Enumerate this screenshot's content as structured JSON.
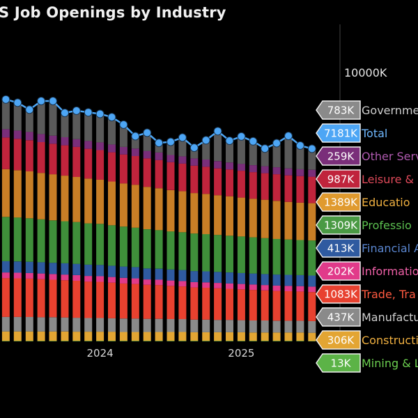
{
  "title": "S Job Openings by Industry",
  "chart_data": {
    "type": "bar",
    "stacked": true,
    "x_ticks": [
      {
        "label": "2024",
        "index": 8
      },
      {
        "label": "2025",
        "index": 20
      }
    ],
    "y_tick_label": "10000K",
    "ymax": 10000,
    "grid": false,
    "n_bars": 27,
    "total_series": {
      "name": "Total",
      "color": "#4da6f5",
      "values": [
        9020,
        8900,
        8640,
        8960,
        8960,
        8520,
        8600,
        8540,
        8480,
        8360,
        8080,
        7650,
        7780,
        7400,
        7440,
        7600,
        7220,
        7500,
        7840,
        7480,
        7640,
        7460,
        7190,
        7390,
        7660,
        7300,
        7181
      ]
    },
    "series": [
      {
        "name": "Mining & Lo",
        "label": "13K",
        "color": "#5cb347",
        "values": [
          20,
          20,
          20,
          20,
          20,
          20,
          20,
          20,
          20,
          20,
          20,
          20,
          20,
          20,
          20,
          20,
          20,
          20,
          20,
          20,
          20,
          20,
          20,
          20,
          20,
          20,
          13
        ]
      },
      {
        "name": "Construction",
        "label": "306K",
        "color": "#e3a533",
        "values": [
          350,
          350,
          350,
          350,
          350,
          350,
          340,
          340,
          340,
          340,
          330,
          330,
          330,
          330,
          330,
          330,
          320,
          320,
          320,
          320,
          320,
          310,
          310,
          310,
          310,
          310,
          306
        ]
      },
      {
        "name": "Manufactu",
        "label": "437K",
        "color": "#8a8a8a",
        "values": [
          540,
          540,
          540,
          530,
          530,
          520,
          520,
          510,
          510,
          500,
          500,
          500,
          490,
          490,
          480,
          480,
          470,
          470,
          460,
          460,
          450,
          450,
          450,
          440,
          440,
          440,
          437
        ]
      },
      {
        "name": "Trade, Tra",
        "label": "1083K",
        "color": "#e8412f",
        "values": [
          1450,
          1440,
          1430,
          1420,
          1400,
          1390,
          1380,
          1360,
          1350,
          1330,
          1310,
          1290,
          1270,
          1260,
          1240,
          1220,
          1200,
          1190,
          1180,
          1160,
          1150,
          1140,
          1120,
          1110,
          1100,
          1090,
          1083
        ]
      },
      {
        "name": "Information",
        "label": "202K",
        "color": "#e13a8a",
        "values": [
          210,
          210,
          210,
          210,
          210,
          210,
          210,
          210,
          210,
          210,
          210,
          210,
          200,
          200,
          200,
          200,
          200,
          200,
          200,
          200,
          200,
          200,
          200,
          200,
          200,
          200,
          202
        ]
      },
      {
        "name": "Financial A",
        "label": "413K",
        "color": "#2f5aa0",
        "values": [
          420,
          420,
          420,
          420,
          420,
          420,
          420,
          420,
          420,
          420,
          420,
          420,
          410,
          410,
          410,
          410,
          410,
          410,
          410,
          410,
          410,
          410,
          410,
          410,
          410,
          410,
          413
        ]
      },
      {
        "name": "Professio",
        "label": "1309K",
        "color": "#3f8f3a",
        "values": [
          1650,
          1640,
          1620,
          1600,
          1580,
          1570,
          1560,
          1540,
          1530,
          1510,
          1490,
          1470,
          1460,
          1440,
          1420,
          1410,
          1400,
          1390,
          1380,
          1370,
          1360,
          1350,
          1340,
          1330,
          1320,
          1310,
          1309
        ]
      },
      {
        "name": "Educatio",
        "label": "1389K",
        "color": "#c87e26",
        "values": [
          1780,
          1760,
          1750,
          1730,
          1720,
          1700,
          1680,
          1670,
          1650,
          1630,
          1610,
          1600,
          1580,
          1560,
          1540,
          1530,
          1510,
          1500,
          1480,
          1470,
          1450,
          1440,
          1430,
          1420,
          1400,
          1390,
          1389
        ]
      },
      {
        "name": "Leisure & H",
        "label": "987K",
        "color": "#c0243c",
        "values": [
          1180,
          1170,
          1160,
          1150,
          1140,
          1130,
          1120,
          1110,
          1100,
          1090,
          1080,
          1070,
          1060,
          1050,
          1040,
          1030,
          1020,
          1010,
          1000,
          1000,
          1000,
          990,
          990,
          990,
          990,
          990,
          987
        ]
      },
      {
        "name": "Other Serv",
        "label": "259K",
        "color": "#7a2e7a",
        "values": [
          310,
          310,
          310,
          300,
          300,
          300,
          290,
          290,
          290,
          290,
          280,
          280,
          280,
          280,
          270,
          270,
          270,
          270,
          270,
          260,
          260,
          260,
          260,
          260,
          260,
          260,
          259
        ]
      },
      {
        "name": "Governme",
        "label": "783K",
        "color": "#5a5a5a",
        "values": [
          1110,
          1040,
          830,
          1230,
          1290,
          930,
          1060,
          1110,
          1080,
          1040,
          790,
          480,
          760,
          380,
          490,
          690,
          400,
          720,
          1110,
          810,
          1020,
          900,
          690,
          910,
          1210,
          960,
          783
        ]
      }
    ],
    "tag_colors": {
      "Governme": "#8a8a8a",
      "Total": "#4da6f5",
      "Other Serv": "#7a2e7a",
      "Leisure & H": "#c0243c",
      "Educatio": "#e09a2e",
      "Professio": "#4a9a44",
      "Financial A": "#2f5aa0",
      "Information": "#e13a8a",
      "Trade, Tra": "#e8412f",
      "Manufactu": "#8a8a8a",
      "Construction": "#e3a533",
      "Mining & Lo": "#5cb347"
    },
    "name_colors": {
      "Governme": "#cfcfcf",
      "Total": "#6fb8ff",
      "Other Serv": "#b05ab0",
      "Leisure & H": "#e04a5a",
      "Educatio": "#f0b040",
      "Professio": "#5cc050",
      "Financial A": "#5a86d0",
      "Information": "#f060a8",
      "Trade, Tra": "#ff5a40",
      "Manufactu": "#cfcfcf",
      "Construction": "#f0b040",
      "Mining & Lo": "#6cd050"
    }
  }
}
